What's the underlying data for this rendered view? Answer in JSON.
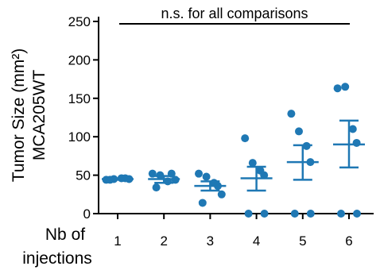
{
  "chart_data": {
    "type": "scatter",
    "annotation": "n.s. for all comparisons",
    "ylabel_line1": "Tumor Size (mm²)",
    "ylabel_line2": "MCA205WT",
    "xlabel_line1": "Nb of",
    "xlabel_line2": "injections",
    "ylim": [
      0,
      250
    ],
    "yticks": [
      "0",
      "50",
      "100",
      "150",
      "200",
      "250"
    ],
    "categories": [
      "1",
      "2",
      "3",
      "4",
      "5",
      "6"
    ],
    "groups": [
      {
        "label": "1",
        "points": [
          44,
          45,
          46,
          45,
          44,
          46
        ],
        "mean": 45,
        "sem_low": 44,
        "sem_high": 46
      },
      {
        "label": "2",
        "points": [
          52,
          50,
          42,
          44,
          34,
          52
        ],
        "mean": 45,
        "sem_low": 40,
        "sem_high": 49
      },
      {
        "label": "3",
        "points": [
          52,
          48,
          40,
          25,
          14,
          36
        ],
        "mean": 36,
        "sem_low": 30,
        "sem_high": 42
      },
      {
        "label": "4",
        "points": [
          98,
          66,
          56,
          0,
          0,
          50
        ],
        "mean": 46,
        "sem_low": 30,
        "sem_high": 61
      },
      {
        "label": "5",
        "points": [
          130,
          107,
          88,
          0,
          0,
          67
        ],
        "mean": 67,
        "sem_low": 44,
        "sem_high": 89
      },
      {
        "label": "6",
        "points": [
          163,
          165,
          110,
          0,
          0,
          92
        ],
        "mean": 90,
        "sem_low": 60,
        "sem_high": 121
      }
    ],
    "colors": {
      "points": "#1f78b4",
      "error_bars": "#1f78b4",
      "axis": "#000000"
    },
    "grid": false,
    "legend": "none"
  }
}
